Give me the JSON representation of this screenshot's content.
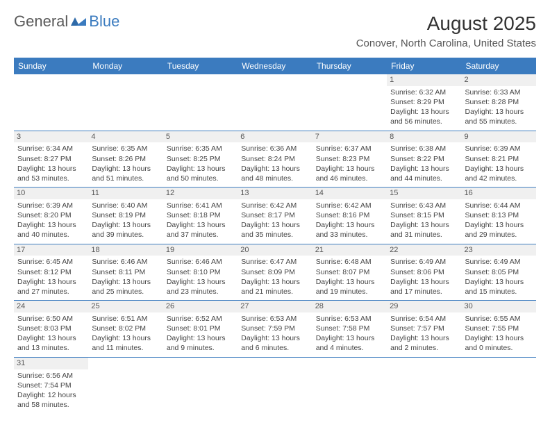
{
  "brand": {
    "part1": "General",
    "part2": "Blue"
  },
  "title": "August 2025",
  "location": "Conover, North Carolina, United States",
  "colors": {
    "header_bg": "#3b7bbf",
    "header_text": "#ffffff",
    "daynum_bg": "#f0f0f0",
    "border": "#3b7bbf",
    "brand_gray": "#5a5a5a",
    "brand_blue": "#3b7bbf"
  },
  "day_headers": [
    "Sunday",
    "Monday",
    "Tuesday",
    "Wednesday",
    "Thursday",
    "Friday",
    "Saturday"
  ],
  "weeks": [
    [
      {
        "n": "",
        "sr": "",
        "ss": "",
        "dl": ""
      },
      {
        "n": "",
        "sr": "",
        "ss": "",
        "dl": ""
      },
      {
        "n": "",
        "sr": "",
        "ss": "",
        "dl": ""
      },
      {
        "n": "",
        "sr": "",
        "ss": "",
        "dl": ""
      },
      {
        "n": "",
        "sr": "",
        "ss": "",
        "dl": ""
      },
      {
        "n": "1",
        "sr": "Sunrise: 6:32 AM",
        "ss": "Sunset: 8:29 PM",
        "dl": "Daylight: 13 hours and 56 minutes."
      },
      {
        "n": "2",
        "sr": "Sunrise: 6:33 AM",
        "ss": "Sunset: 8:28 PM",
        "dl": "Daylight: 13 hours and 55 minutes."
      }
    ],
    [
      {
        "n": "3",
        "sr": "Sunrise: 6:34 AM",
        "ss": "Sunset: 8:27 PM",
        "dl": "Daylight: 13 hours and 53 minutes."
      },
      {
        "n": "4",
        "sr": "Sunrise: 6:35 AM",
        "ss": "Sunset: 8:26 PM",
        "dl": "Daylight: 13 hours and 51 minutes."
      },
      {
        "n": "5",
        "sr": "Sunrise: 6:35 AM",
        "ss": "Sunset: 8:25 PM",
        "dl": "Daylight: 13 hours and 50 minutes."
      },
      {
        "n": "6",
        "sr": "Sunrise: 6:36 AM",
        "ss": "Sunset: 8:24 PM",
        "dl": "Daylight: 13 hours and 48 minutes."
      },
      {
        "n": "7",
        "sr": "Sunrise: 6:37 AM",
        "ss": "Sunset: 8:23 PM",
        "dl": "Daylight: 13 hours and 46 minutes."
      },
      {
        "n": "8",
        "sr": "Sunrise: 6:38 AM",
        "ss": "Sunset: 8:22 PM",
        "dl": "Daylight: 13 hours and 44 minutes."
      },
      {
        "n": "9",
        "sr": "Sunrise: 6:39 AM",
        "ss": "Sunset: 8:21 PM",
        "dl": "Daylight: 13 hours and 42 minutes."
      }
    ],
    [
      {
        "n": "10",
        "sr": "Sunrise: 6:39 AM",
        "ss": "Sunset: 8:20 PM",
        "dl": "Daylight: 13 hours and 40 minutes."
      },
      {
        "n": "11",
        "sr": "Sunrise: 6:40 AM",
        "ss": "Sunset: 8:19 PM",
        "dl": "Daylight: 13 hours and 39 minutes."
      },
      {
        "n": "12",
        "sr": "Sunrise: 6:41 AM",
        "ss": "Sunset: 8:18 PM",
        "dl": "Daylight: 13 hours and 37 minutes."
      },
      {
        "n": "13",
        "sr": "Sunrise: 6:42 AM",
        "ss": "Sunset: 8:17 PM",
        "dl": "Daylight: 13 hours and 35 minutes."
      },
      {
        "n": "14",
        "sr": "Sunrise: 6:42 AM",
        "ss": "Sunset: 8:16 PM",
        "dl": "Daylight: 13 hours and 33 minutes."
      },
      {
        "n": "15",
        "sr": "Sunrise: 6:43 AM",
        "ss": "Sunset: 8:15 PM",
        "dl": "Daylight: 13 hours and 31 minutes."
      },
      {
        "n": "16",
        "sr": "Sunrise: 6:44 AM",
        "ss": "Sunset: 8:13 PM",
        "dl": "Daylight: 13 hours and 29 minutes."
      }
    ],
    [
      {
        "n": "17",
        "sr": "Sunrise: 6:45 AM",
        "ss": "Sunset: 8:12 PM",
        "dl": "Daylight: 13 hours and 27 minutes."
      },
      {
        "n": "18",
        "sr": "Sunrise: 6:46 AM",
        "ss": "Sunset: 8:11 PM",
        "dl": "Daylight: 13 hours and 25 minutes."
      },
      {
        "n": "19",
        "sr": "Sunrise: 6:46 AM",
        "ss": "Sunset: 8:10 PM",
        "dl": "Daylight: 13 hours and 23 minutes."
      },
      {
        "n": "20",
        "sr": "Sunrise: 6:47 AM",
        "ss": "Sunset: 8:09 PM",
        "dl": "Daylight: 13 hours and 21 minutes."
      },
      {
        "n": "21",
        "sr": "Sunrise: 6:48 AM",
        "ss": "Sunset: 8:07 PM",
        "dl": "Daylight: 13 hours and 19 minutes."
      },
      {
        "n": "22",
        "sr": "Sunrise: 6:49 AM",
        "ss": "Sunset: 8:06 PM",
        "dl": "Daylight: 13 hours and 17 minutes."
      },
      {
        "n": "23",
        "sr": "Sunrise: 6:49 AM",
        "ss": "Sunset: 8:05 PM",
        "dl": "Daylight: 13 hours and 15 minutes."
      }
    ],
    [
      {
        "n": "24",
        "sr": "Sunrise: 6:50 AM",
        "ss": "Sunset: 8:03 PM",
        "dl": "Daylight: 13 hours and 13 minutes."
      },
      {
        "n": "25",
        "sr": "Sunrise: 6:51 AM",
        "ss": "Sunset: 8:02 PM",
        "dl": "Daylight: 13 hours and 11 minutes."
      },
      {
        "n": "26",
        "sr": "Sunrise: 6:52 AM",
        "ss": "Sunset: 8:01 PM",
        "dl": "Daylight: 13 hours and 9 minutes."
      },
      {
        "n": "27",
        "sr": "Sunrise: 6:53 AM",
        "ss": "Sunset: 7:59 PM",
        "dl": "Daylight: 13 hours and 6 minutes."
      },
      {
        "n": "28",
        "sr": "Sunrise: 6:53 AM",
        "ss": "Sunset: 7:58 PM",
        "dl": "Daylight: 13 hours and 4 minutes."
      },
      {
        "n": "29",
        "sr": "Sunrise: 6:54 AM",
        "ss": "Sunset: 7:57 PM",
        "dl": "Daylight: 13 hours and 2 minutes."
      },
      {
        "n": "30",
        "sr": "Sunrise: 6:55 AM",
        "ss": "Sunset: 7:55 PM",
        "dl": "Daylight: 13 hours and 0 minutes."
      }
    ],
    [
      {
        "n": "31",
        "sr": "Sunrise: 6:56 AM",
        "ss": "Sunset: 7:54 PM",
        "dl": "Daylight: 12 hours and 58 minutes."
      },
      {
        "n": "",
        "sr": "",
        "ss": "",
        "dl": ""
      },
      {
        "n": "",
        "sr": "",
        "ss": "",
        "dl": ""
      },
      {
        "n": "",
        "sr": "",
        "ss": "",
        "dl": ""
      },
      {
        "n": "",
        "sr": "",
        "ss": "",
        "dl": ""
      },
      {
        "n": "",
        "sr": "",
        "ss": "",
        "dl": ""
      },
      {
        "n": "",
        "sr": "",
        "ss": "",
        "dl": ""
      }
    ]
  ]
}
